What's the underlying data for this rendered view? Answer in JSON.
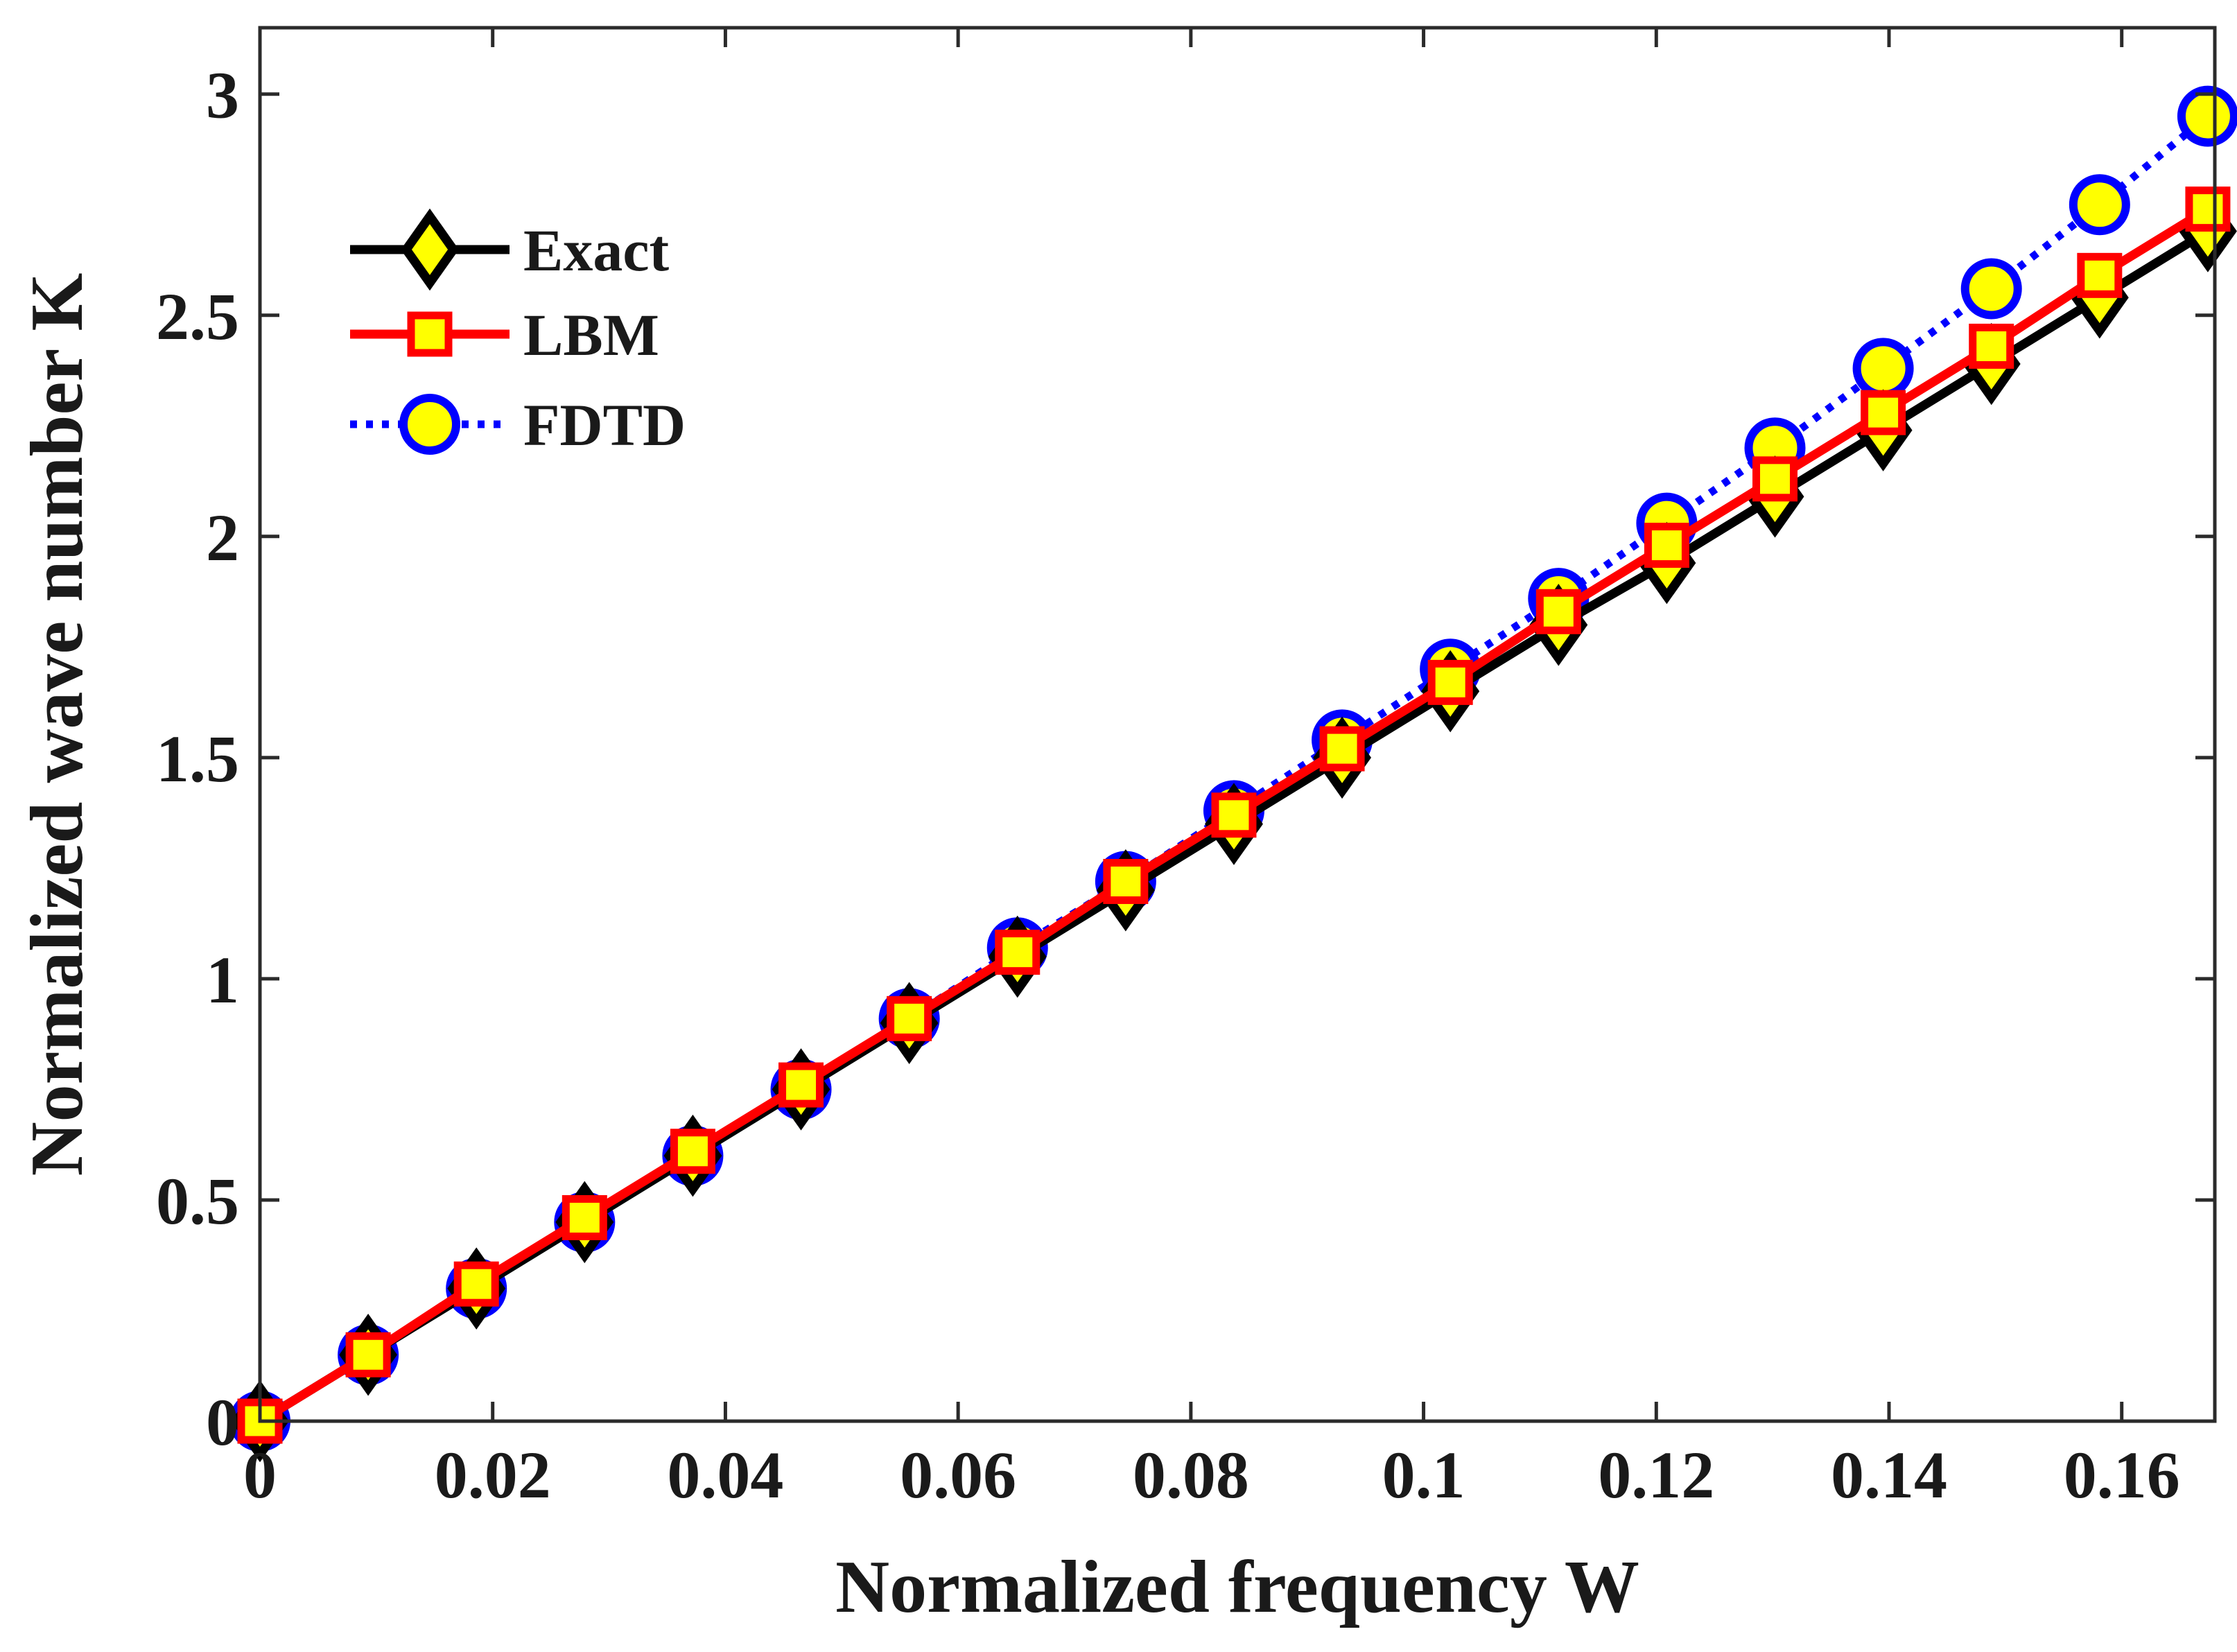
{
  "chart_data": {
    "type": "line",
    "title": "",
    "xlabel": "Normalized frequency W",
    "ylabel": "Normalized wave number K",
    "xlim": [
      0,
      0.168
    ],
    "ylim": [
      0,
      3.15
    ],
    "xticks": [
      0,
      0.02,
      0.04,
      0.06,
      0.08,
      0.1,
      0.12,
      0.14,
      0.16
    ],
    "xtick_labels": [
      "0",
      "0.02",
      "0.04",
      "0.06",
      "0.08",
      "0.1",
      "0.12",
      "0.14",
      "0.16"
    ],
    "yticks": [
      0,
      0.5,
      1,
      1.5,
      2,
      2.5,
      3
    ],
    "ytick_labels": [
      "0",
      "0.5",
      "1",
      "1.5",
      "2",
      "2.5",
      "3"
    ],
    "grid": false,
    "legend_position": "top-left",
    "x": [
      0,
      0.0093,
      0.0186,
      0.0279,
      0.0372,
      0.0465,
      0.0558,
      0.0651,
      0.0744,
      0.0837,
      0.093,
      0.1023,
      0.1116,
      0.1209,
      0.1302,
      0.1395,
      0.1488,
      0.1581,
      0.1674
    ],
    "series": [
      {
        "name": "Exact",
        "line_color": "#000000",
        "line_style": "solid",
        "marker": "diamond",
        "marker_fill": "#ffff00",
        "marker_edge": "#000000",
        "values": [
          0.0,
          0.15,
          0.3,
          0.45,
          0.6,
          0.75,
          0.9,
          1.05,
          1.2,
          1.35,
          1.5,
          1.65,
          1.8,
          1.94,
          2.09,
          2.24,
          2.39,
          2.54,
          2.69
        ]
      },
      {
        "name": "LBM",
        "line_color": "#ff0000",
        "line_style": "solid",
        "marker": "square",
        "marker_fill": "#ffff00",
        "marker_edge": "#ff0000",
        "values": [
          0.0,
          0.15,
          0.31,
          0.46,
          0.61,
          0.76,
          0.91,
          1.06,
          1.22,
          1.37,
          1.52,
          1.67,
          1.83,
          1.98,
          2.13,
          2.28,
          2.43,
          2.59,
          2.74
        ]
      },
      {
        "name": "FDTD",
        "line_color": "#0000ff",
        "line_style": "dotted",
        "marker": "circle",
        "marker_fill": "#ffff00",
        "marker_edge": "#0000ff",
        "values": [
          0.0,
          0.15,
          0.3,
          0.45,
          0.6,
          0.75,
          0.91,
          1.07,
          1.22,
          1.38,
          1.54,
          1.7,
          1.86,
          2.03,
          2.2,
          2.38,
          2.56,
          2.75,
          2.95
        ]
      }
    ]
  }
}
